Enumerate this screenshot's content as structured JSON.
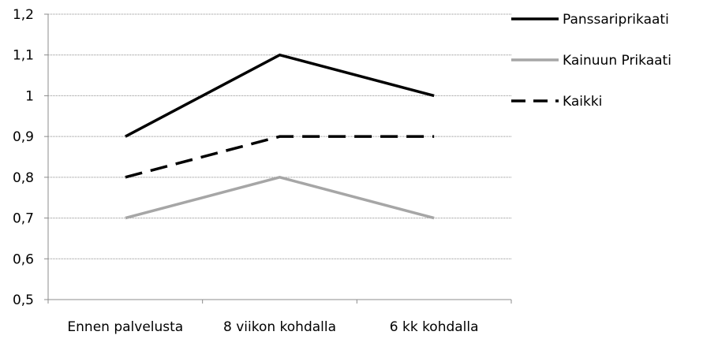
{
  "chart_data": {
    "type": "line",
    "categories": [
      "Ennen palvelusta",
      "8 viikon kohdalla",
      "6 kk kohdalla"
    ],
    "y_tick_labels": [
      "0,5",
      "0,6",
      "0,7",
      "0,8",
      "0,9",
      "1",
      "1,1",
      "1,2"
    ],
    "y_ticks": [
      0.5,
      0.6,
      0.7,
      0.8,
      0.9,
      1.0,
      1.1,
      1.2
    ],
    "ylim": [
      0.5,
      1.2
    ],
    "grid": true,
    "legend_position": "right",
    "series": [
      {
        "name": "Panssariprikaati",
        "values": [
          0.9,
          1.1,
          1.0
        ],
        "color": "#000000",
        "style": "solid"
      },
      {
        "name": "Kainuun Prikaati",
        "values": [
          0.7,
          0.8,
          0.7
        ],
        "color": "#a6a6a6",
        "style": "solid"
      },
      {
        "name": "Kaikki",
        "values": [
          0.8,
          0.9,
          0.9
        ],
        "color": "#000000",
        "style": "dashed"
      }
    ]
  }
}
